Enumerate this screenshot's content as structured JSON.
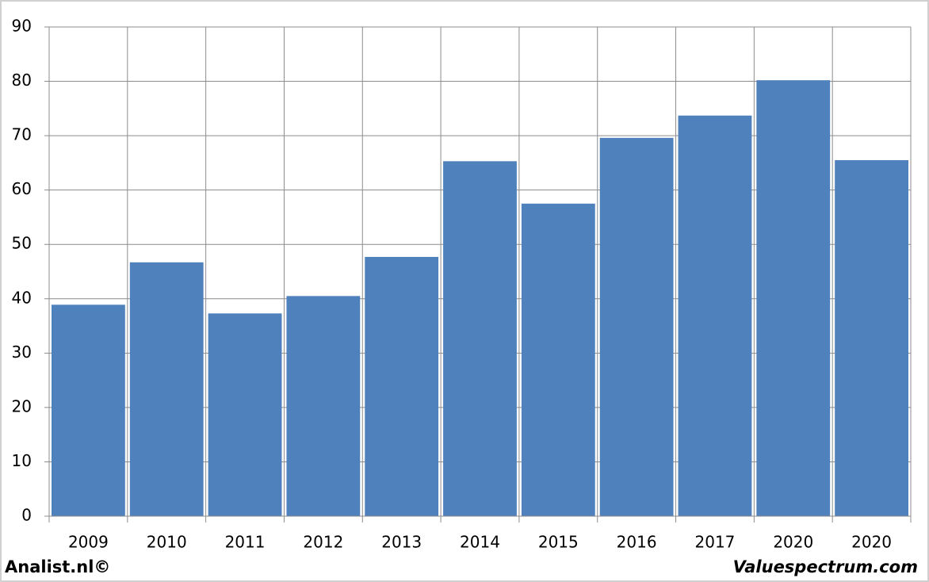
{
  "chart_data": {
    "type": "bar",
    "categories": [
      "2009",
      "2010",
      "2011",
      "2012",
      "2013",
      "2014",
      "2015",
      "2016",
      "2017",
      "2020",
      "2020"
    ],
    "values": [
      38.9,
      46.7,
      37.3,
      40.5,
      47.7,
      65.3,
      57.5,
      69.6,
      73.7,
      80.2,
      65.5
    ],
    "color": "#4f81bd",
    "ylim": [
      0,
      90
    ],
    "yticks": [
      0,
      10,
      20,
      30,
      40,
      50,
      60,
      70,
      80,
      90
    ],
    "grid": true,
    "annotations": [
      "Analist.nl©",
      "Valuespectrum.com"
    ]
  }
}
